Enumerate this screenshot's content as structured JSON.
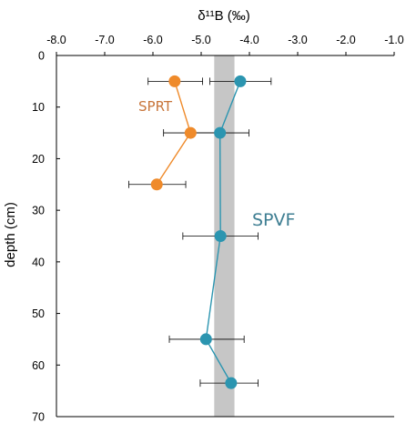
{
  "chart_data": {
    "type": "scatter",
    "title": "",
    "xlabel": "δ¹¹B (‰)",
    "ylabel": "depth (cm)",
    "x_axis_position": "top",
    "y_inverted": true,
    "xlim": [
      -8.0,
      -1.0
    ],
    "ylim": [
      0,
      70
    ],
    "x_ticks": [
      "-8.0",
      "-7.0",
      "-6.0",
      "-5.0",
      "-4.0",
      "-3.0",
      "-2.0",
      "-1.0"
    ],
    "y_ticks": [
      "0",
      "10",
      "20",
      "30",
      "40",
      "50",
      "60",
      "70"
    ],
    "grid": false,
    "band": {
      "x_range": [
        -4.73,
        -4.31
      ],
      "color": "#c6c6c6"
    },
    "series": [
      {
        "name": "SPRT",
        "color": "#ef8a2a",
        "label_color": "#c8753a",
        "points": [
          {
            "x": -5.55,
            "y": 5,
            "x_err_low": -6.1,
            "x_err_high": -4.97
          },
          {
            "x": -5.22,
            "y": 15,
            "x_err_low": -5.78,
            "x_err_high": -4.63
          },
          {
            "x": -5.92,
            "y": 25,
            "x_err_low": -6.5,
            "x_err_high": -5.32
          }
        ]
      },
      {
        "name": "SPVF",
        "color": "#2b95b0",
        "label_color": "#3e7e92",
        "points": [
          {
            "x": -4.19,
            "y": 5,
            "x_err_low": -4.82,
            "x_err_high": -3.55
          },
          {
            "x": -4.61,
            "y": 15,
            "x_err_low": -5.22,
            "x_err_high": -4.01
          },
          {
            "x": -4.6,
            "y": 35,
            "x_err_low": -5.38,
            "x_err_high": -3.82
          },
          {
            "x": -4.9,
            "y": 55,
            "x_err_low": -5.66,
            "x_err_high": -4.11
          },
          {
            "x": -4.38,
            "y": 63.5,
            "x_err_low": -5.02,
            "x_err_high": -3.82
          }
        ]
      }
    ]
  }
}
